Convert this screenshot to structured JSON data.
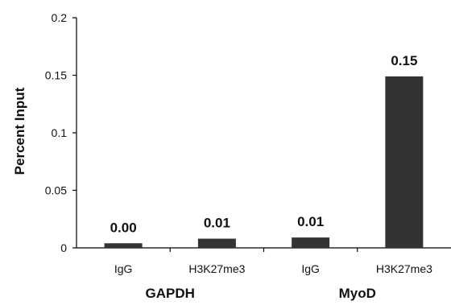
{
  "chart_data": {
    "type": "bar",
    "title": "",
    "xlabel": "",
    "ylabel": "Percent Input",
    "ylim": [
      0,
      0.2
    ],
    "yticks": [
      "0",
      "0.05",
      "0.1",
      "0.15",
      "0.2"
    ],
    "categories": [
      "IgG",
      "H3K27me3",
      "IgG",
      "H3K27me3"
    ],
    "groups": [
      "GAPDH",
      "MyoD"
    ],
    "values": [
      0.004,
      0.008,
      0.009,
      0.149
    ],
    "data_labels": [
      "0.00",
      "0.01",
      "0.01",
      "0.15"
    ],
    "grid": false,
    "bar_color": "#333333"
  }
}
